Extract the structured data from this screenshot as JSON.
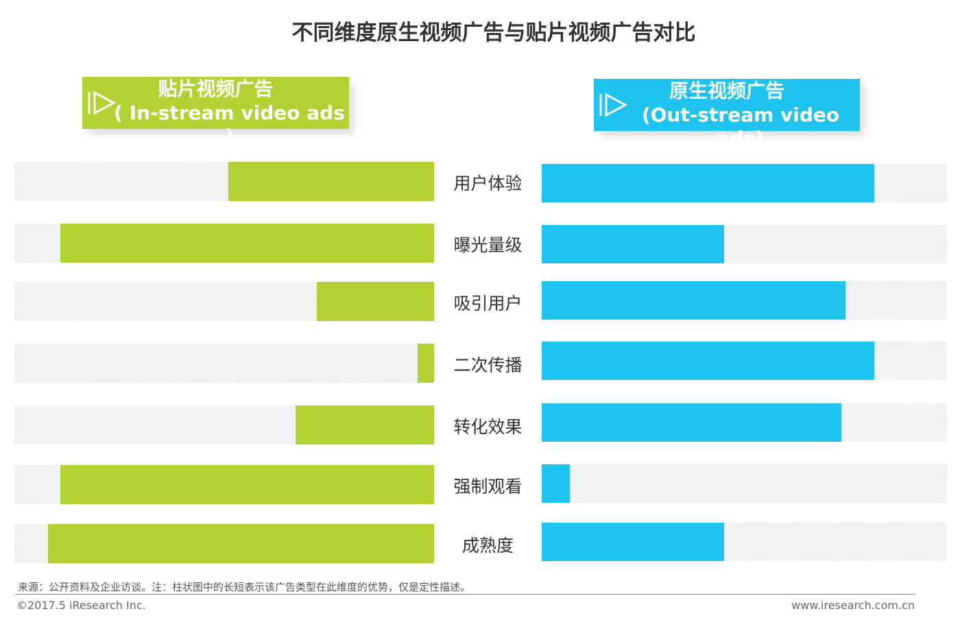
{
  "chart_data": {
    "type": "bar",
    "title": "不同维度原生视频广告与贴片视频广告对比",
    "categories": [
      "用户体验",
      "曝光量级",
      "吸引用户",
      "二次传播",
      "转化效果",
      "强制观看",
      "成熟度"
    ],
    "series": [
      {
        "name": "贴片视频广告",
        "name_en": "( In-stream video ads )",
        "color": "#b1d232",
        "direction": "left",
        "values": [
          49,
          89,
          28,
          4,
          33,
          89,
          92
        ]
      },
      {
        "name": "原生视频广告",
        "name_en": "(Out-stream video ads)",
        "color": "#1ec4ef",
        "direction": "right",
        "values": [
          82,
          45,
          75,
          82,
          74,
          7,
          45
        ]
      }
    ],
    "ylim": [
      0,
      100
    ]
  },
  "footer": {
    "source": "来源：公开资料及企业访谈。注：柱状图中的长短表示该广告类型在此维度的优势，仅是定性描述。",
    "copyright": "©2017.5 iResearch Inc.",
    "website": "www.iresearch.com.cn"
  }
}
